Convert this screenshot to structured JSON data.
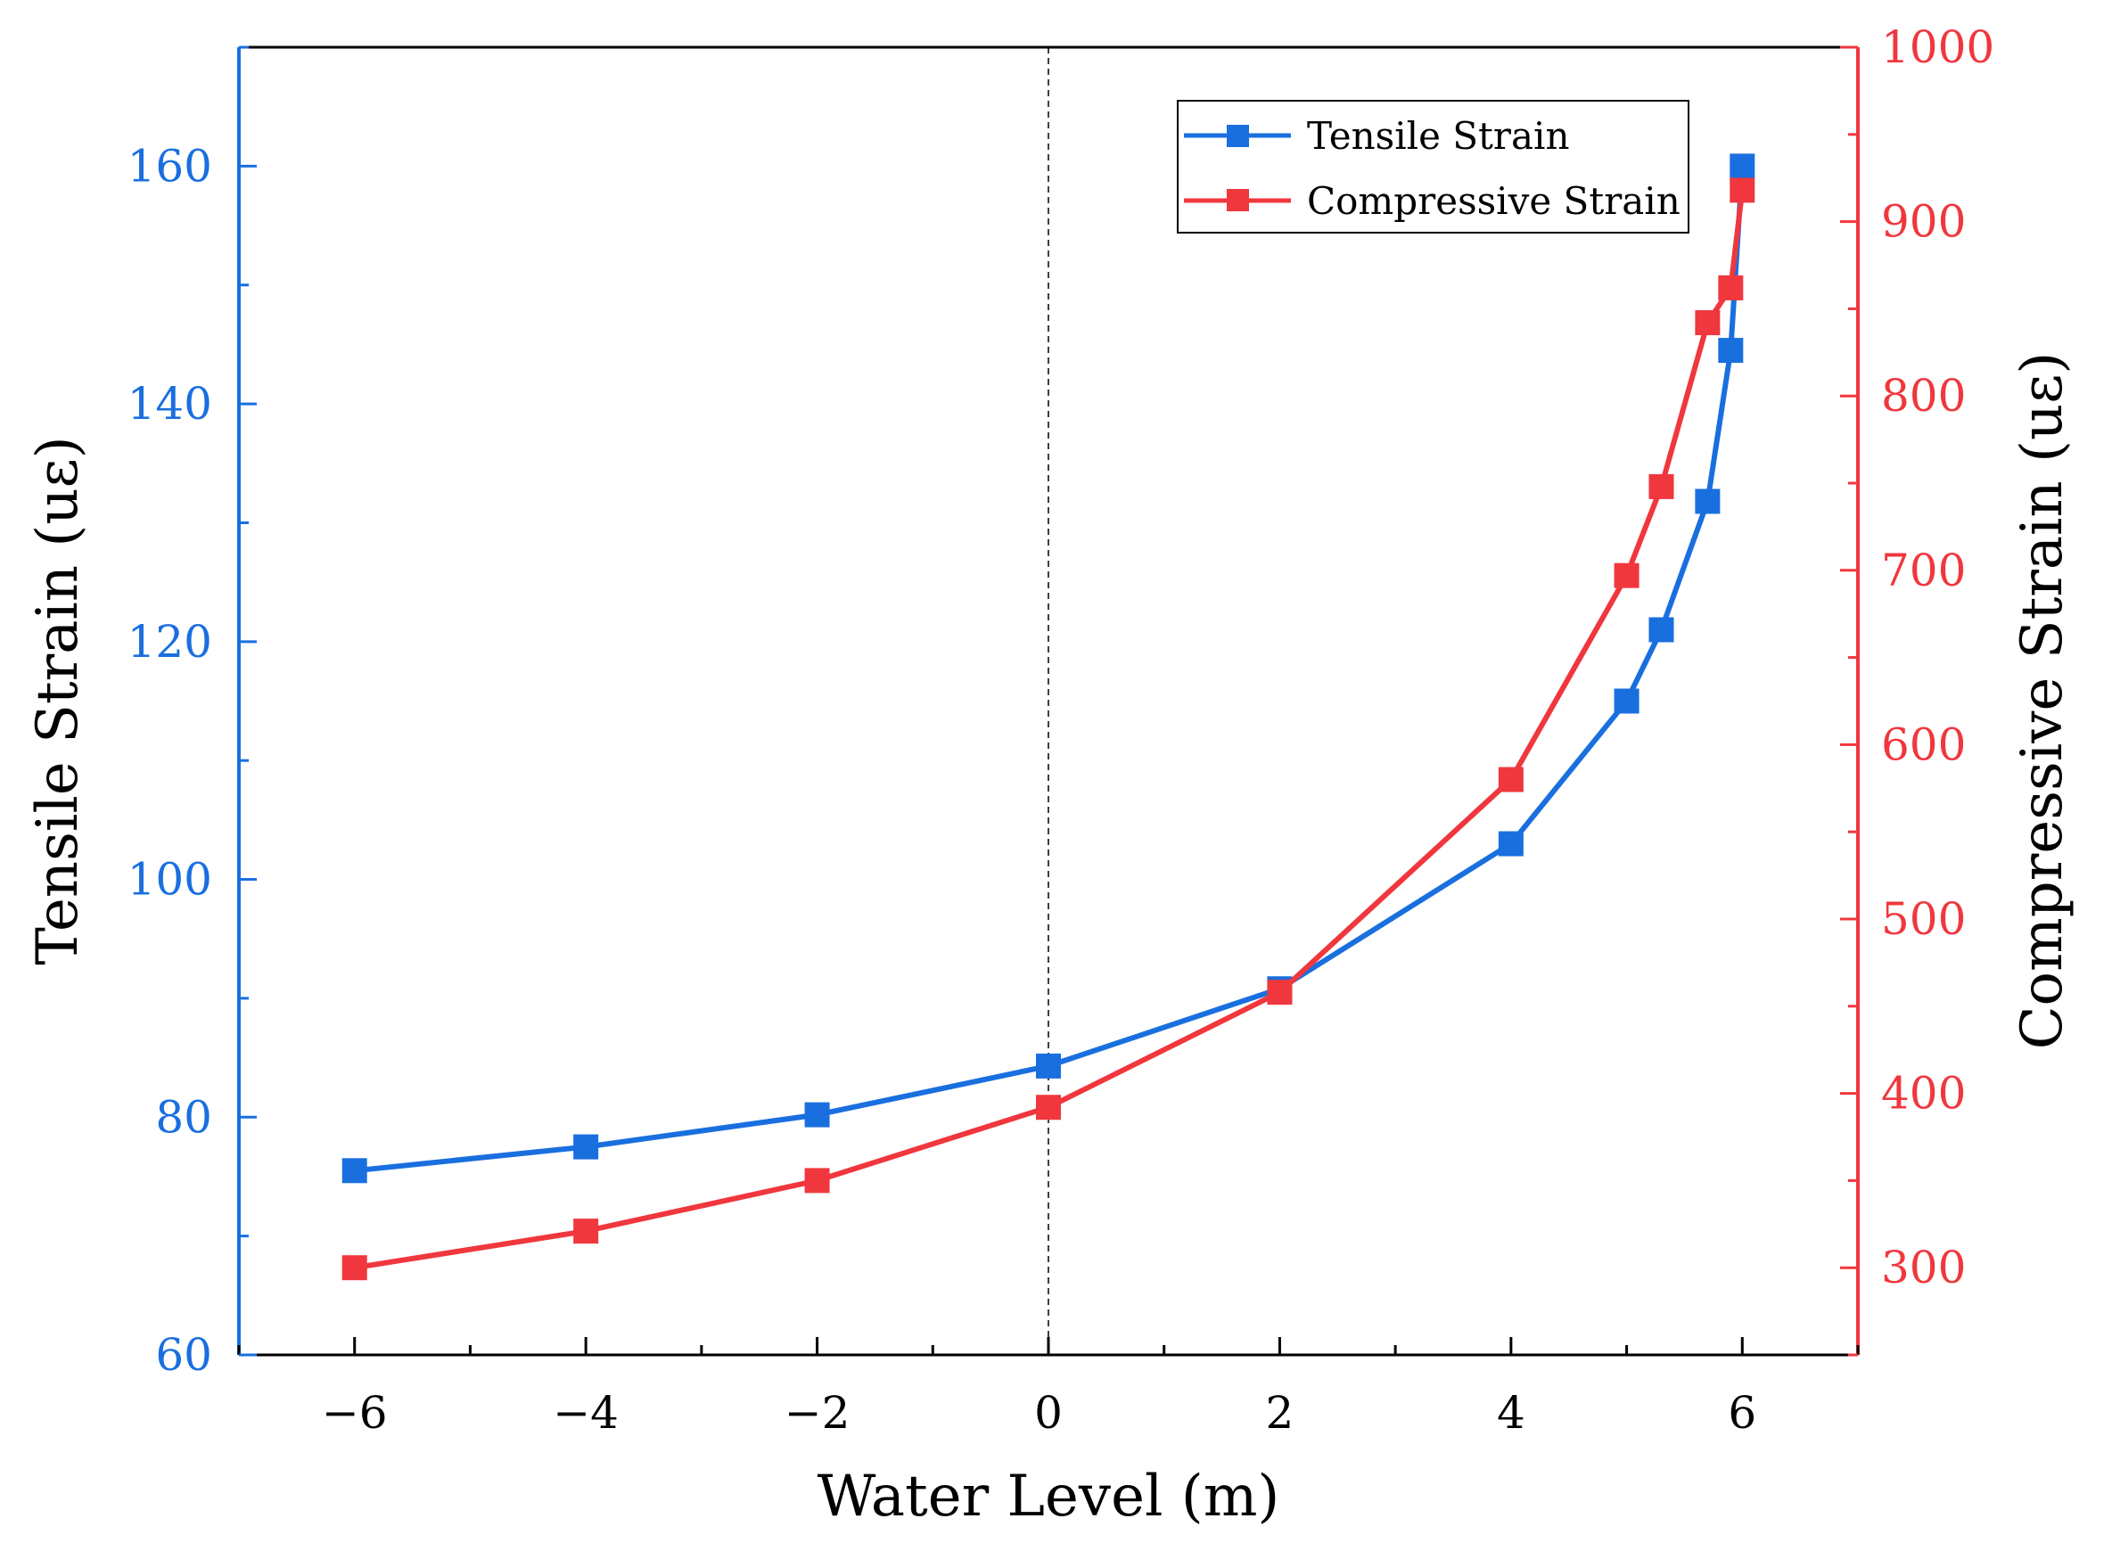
{
  "chart_data": {
    "type": "line",
    "x": [
      -6,
      -4,
      -2,
      0,
      2,
      4,
      5,
      5.3,
      5.7,
      5.9,
      6
    ],
    "series": [
      {
        "name": "Tensile Strain",
        "axis": "left",
        "color": "#1a6fdf",
        "values": [
          75.5,
          77.5,
          80.2,
          84.3,
          90.8,
          103.0,
          115.0,
          121.0,
          131.8,
          144.5,
          160.0
        ]
      },
      {
        "name": "Compressive Strain",
        "axis": "right",
        "color": "#f0373d",
        "values": [
          300,
          321,
          350,
          392,
          458,
          580,
          697,
          748,
          842,
          862,
          918
        ]
      }
    ],
    "xlabel": "Water Level (m)",
    "ylabel_left": "Tensile Strain (uε)",
    "ylabel_right": "Compressive Strain (uε)",
    "xlim": [
      -7,
      7
    ],
    "ylim_left": [
      60,
      170
    ],
    "ylim_right": [
      250,
      1000
    ],
    "x_ticks": [
      "−6",
      "−4",
      "−2",
      "0",
      "2",
      "4",
      "6"
    ],
    "x_tick_values": [
      -6,
      -4,
      -2,
      0,
      2,
      4,
      6
    ],
    "y_left_ticks": [
      "60",
      "80",
      "100",
      "120",
      "140",
      "160"
    ],
    "y_left_tick_values": [
      60,
      80,
      100,
      120,
      140,
      160
    ],
    "y_right_ticks": [
      "300",
      "400",
      "500",
      "600",
      "700",
      "800",
      "900",
      "1000"
    ],
    "y_right_tick_values": [
      300,
      400,
      500,
      600,
      700,
      800,
      900,
      1000
    ],
    "reference_line_x": 0,
    "legend_position": "top-right",
    "grid": false
  }
}
